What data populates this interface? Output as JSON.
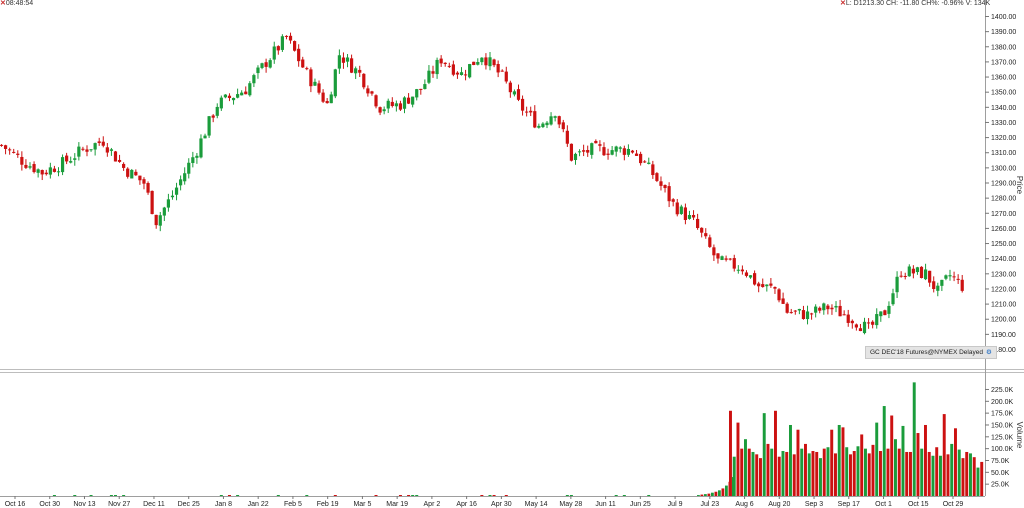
{
  "header": {
    "time": "08:48:54",
    "quote": "L: D1213.30 CH: -11.80 CH%: -0.96% V: 134K"
  },
  "badge": {
    "text": "GC DEC'18 Futures@NYMEX Delayed",
    "icon": "gear-icon"
  },
  "colors": {
    "up": "#1a9c3b",
    "down": "#cc1111",
    "grid": "#e6e6e6"
  },
  "chart_data": [
    {
      "type": "candlestick",
      "ylabel": "Price",
      "ylim": [
        1170,
        1405
      ],
      "yticks": [
        1180.0,
        1190.0,
        1200.0,
        1210.0,
        1220.0,
        1230.0,
        1240.0,
        1250.0,
        1260.0,
        1270.0,
        1280.0,
        1290.0,
        1300.0,
        1310.0,
        1320.0,
        1330.0,
        1340.0,
        1350.0,
        1360.0,
        1370.0,
        1380.0,
        1390.0,
        1400.0
      ],
      "x_dates": [
        "Oct 16",
        "Oct 30",
        "Nov 13",
        "Nov 27",
        "Dec 11",
        "Dec 25",
        "Jan 8",
        "Jan 22",
        "Feb 5",
        "Feb 19",
        "Mar 5",
        "Mar 19",
        "Apr 2",
        "Apr 16",
        "Apr 30",
        "May 14",
        "May 28",
        "Jun 11",
        "Jun 25",
        "Jul 9",
        "Jul 23",
        "Aug 6",
        "Aug 20",
        "Sep 3",
        "Sep 17",
        "Oct 1",
        "Oct 15",
        "Oct 29"
      ],
      "anchors": [
        [
          0,
          1315
        ],
        [
          5,
          1305
        ],
        [
          10,
          1297
        ],
        [
          15,
          1303
        ],
        [
          20,
          1312
        ],
        [
          25,
          1318
        ],
        [
          30,
          1300
        ],
        [
          35,
          1290
        ],
        [
          38,
          1265
        ],
        [
          42,
          1282
        ],
        [
          48,
          1312
        ],
        [
          53,
          1342
        ],
        [
          60,
          1352
        ],
        [
          65,
          1370
        ],
        [
          70,
          1386
        ],
        [
          75,
          1362
        ],
        [
          80,
          1342
        ],
        [
          83,
          1375
        ],
        [
          88,
          1362
        ],
        [
          93,
          1340
        ],
        [
          98,
          1342
        ],
        [
          103,
          1352
        ],
        [
          108,
          1372
        ],
        [
          113,
          1362
        ],
        [
          118,
          1375
        ],
        [
          123,
          1360
        ],
        [
          127,
          1342
        ],
        [
          132,
          1328
        ],
        [
          136,
          1338
        ],
        [
          140,
          1307
        ],
        [
          145,
          1312
        ],
        [
          150,
          1312
        ],
        [
          155,
          1312
        ],
        [
          160,
          1296
        ],
        [
          165,
          1276
        ],
        [
          170,
          1264
        ],
        [
          176,
          1238
        ],
        [
          182,
          1234
        ],
        [
          186,
          1222
        ],
        [
          190,
          1220
        ],
        [
          193,
          1205
        ],
        [
          198,
          1203
        ],
        [
          203,
          1208
        ],
        [
          208,
          1202
        ],
        [
          213,
          1193
        ],
        [
          217,
          1205
        ],
        [
          221,
          1232
        ],
        [
          227,
          1230
        ],
        [
          230,
          1218
        ],
        [
          233,
          1229
        ],
        [
          236,
          1222
        ]
      ],
      "volume": {
        "ylabel": "Volume",
        "ylim": [
          0,
          245000
        ],
        "yticks": [
          "25.0K",
          "50.0K",
          "75.0K",
          "100.0K",
          "125.0K",
          "150.0K",
          "175.0K",
          "200.0K",
          "225.0K"
        ],
        "bars": [
          180000,
          83000,
          155000,
          100000,
          120000,
          100000,
          93000,
          88000,
          80000,
          175000,
          110000,
          100000,
          180000,
          83000,
          95000,
          93000,
          150000,
          88000,
          140000,
          100000,
          110000,
          90000,
          95000,
          93000,
          80000,
          100000,
          103000,
          140000,
          90000,
          150000,
          145000,
          103000,
          88000,
          95000,
          105000,
          130000,
          100000,
          90000,
          108000,
          155000,
          95000,
          190000,
          100000,
          170000,
          120000,
          100000,
          148000,
          93000,
          93000,
          240000,
          133000,
          100000,
          150000,
          93000,
          85000,
          103000,
          85000,
          173000,
          88000,
          110000,
          143000,
          98000,
          80000,
          93000,
          90000,
          82000,
          60000,
          72000
        ]
      }
    }
  ]
}
